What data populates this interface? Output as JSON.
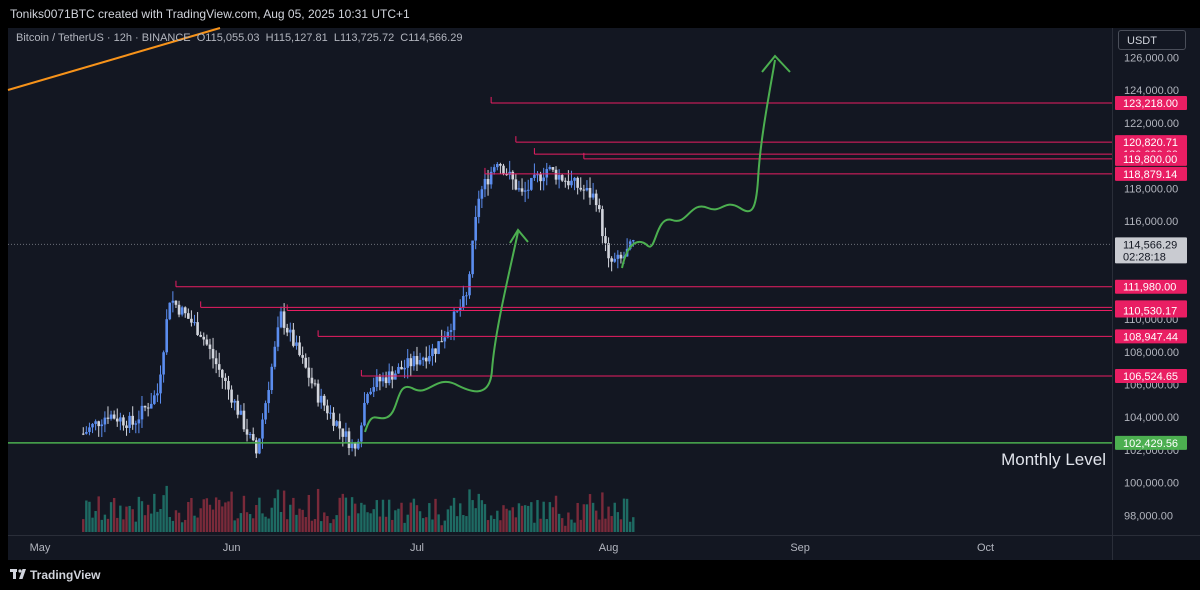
{
  "header": {
    "attribution": "Toniks0071BTC created with TradingView.com, Aug 05, 2025 10:31 UTC+1"
  },
  "symbol": {
    "name": "Bitcoin / TetherUS · 12h · BINANCE",
    "open": "O115,055.03",
    "high": "H115,127.81",
    "low": "L113,725.72",
    "close": "C114,566.29"
  },
  "currency": "USDT",
  "footer": {
    "brand": "TradingView"
  },
  "colors": {
    "background": "#131722",
    "up": "#5b8def",
    "down": "#d1d4dc",
    "level": "#e91e63",
    "monthly": "#4caf50",
    "projection": "#4caf50",
    "trendline": "#f7931a"
  },
  "chart_data": {
    "type": "candlestick",
    "title": "Bitcoin / TetherUS · 12h · BINANCE",
    "x_axis": {
      "ticks": [
        "May",
        "Jun",
        "Jul",
        "Aug",
        "Sep",
        "Oct"
      ],
      "tick_dates": [
        "2025-05-01",
        "2025-06-01",
        "2025-07-01",
        "2025-08-01",
        "2025-09-01",
        "2025-10-01"
      ]
    },
    "y_axis": {
      "range": [
        96800,
        127800
      ],
      "ticks": [
        98000,
        100000,
        102000,
        104000,
        106000,
        108000,
        110000,
        112000,
        114000,
        116000,
        118000,
        120000,
        122000,
        124000,
        126000
      ],
      "tick_labels": [
        "98,000.00",
        "100,000.00",
        "102,000.00",
        "104,000.00",
        "106,000.00",
        "108,000.00",
        "110,000.00",
        "112,000.00",
        "114,000.00",
        "116,000.00",
        "118,000.00",
        "120,000.00",
        "122,000.00",
        "124,000.00",
        "126,000.00"
      ]
    },
    "ohlc_daily_approx": [
      {
        "date": "2025-05-08",
        "close": 103000
      },
      {
        "date": "2025-05-12",
        "close": 104200
      },
      {
        "date": "2025-05-16",
        "close": 103600
      },
      {
        "date": "2025-05-20",
        "close": 105500
      },
      {
        "date": "2025-05-22",
        "close": 111300
      },
      {
        "date": "2025-05-27",
        "close": 109200
      },
      {
        "date": "2025-06-01",
        "close": 105300
      },
      {
        "date": "2025-06-05",
        "close": 101800
      },
      {
        "date": "2025-06-09",
        "close": 110200
      },
      {
        "date": "2025-06-15",
        "close": 105300
      },
      {
        "date": "2025-06-21",
        "close": 102000
      },
      {
        "date": "2025-06-23",
        "close": 105800
      },
      {
        "date": "2025-06-30",
        "close": 107300
      },
      {
        "date": "2025-07-04",
        "close": 108200
      },
      {
        "date": "2025-07-09",
        "close": 111300
      },
      {
        "date": "2025-07-11",
        "close": 117500
      },
      {
        "date": "2025-07-14",
        "close": 119800
      },
      {
        "date": "2025-07-18",
        "close": 117600
      },
      {
        "date": "2025-07-22",
        "close": 119200
      },
      {
        "date": "2025-07-27",
        "close": 118100
      },
      {
        "date": "2025-07-30",
        "close": 117400
      },
      {
        "date": "2025-08-01",
        "close": 113400
      },
      {
        "date": "2025-08-03",
        "close": 113600
      },
      {
        "date": "2025-08-05",
        "close": 114566.29
      }
    ],
    "levels": [
      {
        "price": 123218.0,
        "label": "123,218.00"
      },
      {
        "price": 120820.71,
        "label": "120,820.71"
      },
      {
        "price": 120090.0,
        "label": "120,090.00"
      },
      {
        "price": 119800.0,
        "label": "119,800.00"
      },
      {
        "price": 118879.14,
        "label": "118,879.14"
      },
      {
        "price": 111980.0,
        "label": "111,980.00"
      },
      {
        "price": 110718.0,
        "label": "110,718.00"
      },
      {
        "price": 110530.17,
        "label": "110,530.17"
      },
      {
        "price": 108947.44,
        "label": "108,947.44"
      },
      {
        "price": 106524.65,
        "label": "106,524.65"
      }
    ],
    "monthly_level": {
      "price": 102429.56,
      "label": "102,429.56",
      "annotation": "Monthly Level"
    },
    "current_price": {
      "price": 114566.29,
      "label": "114,566.29",
      "countdown": "02:28:18"
    }
  }
}
